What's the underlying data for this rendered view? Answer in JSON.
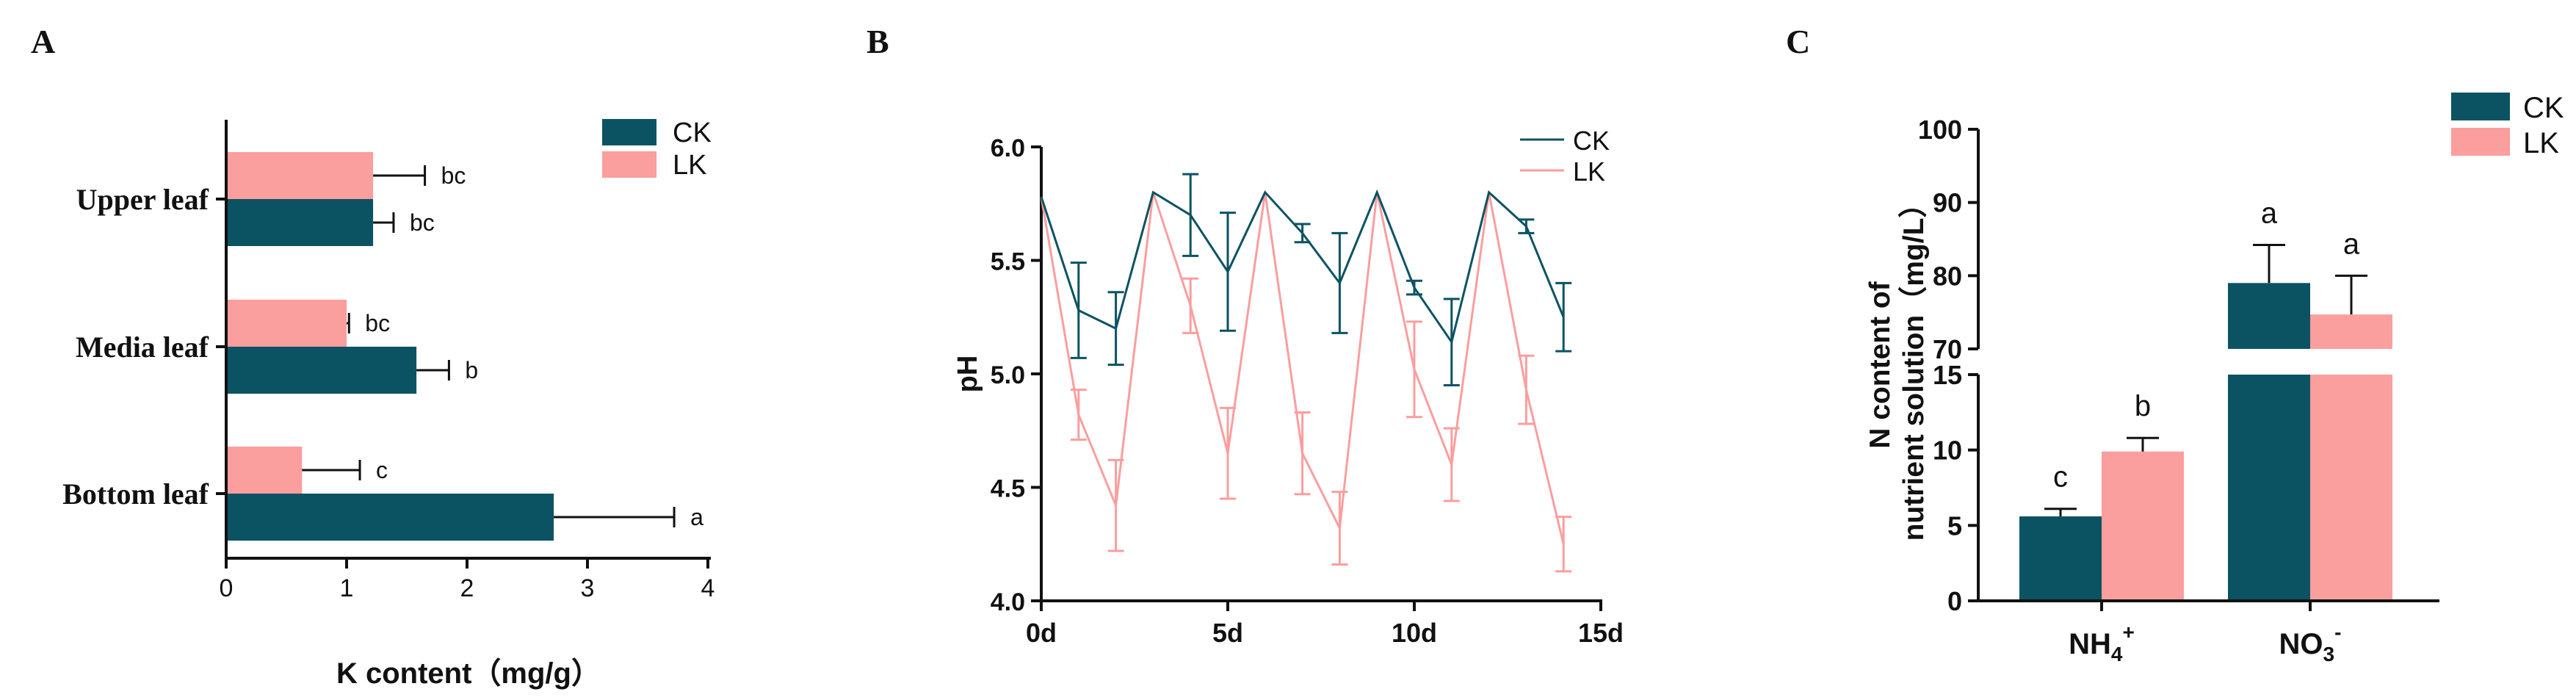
{
  "colors": {
    "CK": "#0b5363",
    "LK": "#fb9e9e"
  },
  "chart_data": [
    {
      "panel": "A",
      "type": "bar",
      "orientation": "horizontal",
      "categories": [
        "Upper leaf",
        "Media leaf",
        "Bottom leaf"
      ],
      "series": [
        {
          "name": "CK",
          "values": [
            1.22,
            1.58,
            2.72
          ],
          "errors": [
            0.17,
            0.27,
            1.0
          ],
          "letters": [
            "bc",
            "b",
            "a"
          ]
        },
        {
          "name": "LK",
          "values": [
            1.22,
            1.0,
            0.63
          ],
          "errors": [
            0.43,
            0.02,
            0.48
          ],
          "letters": [
            "bc",
            "bc",
            "c"
          ]
        }
      ],
      "xlabel": "K content（mg/g）",
      "xlim": [
        0,
        4
      ],
      "xticks": [
        "0",
        "1",
        "2",
        "3",
        "4"
      ],
      "legend": "top-right"
    },
    {
      "panel": "B",
      "type": "line",
      "x": [
        0,
        1,
        2,
        3,
        4,
        5,
        6,
        7,
        8,
        9,
        10,
        11,
        12,
        13,
        14
      ],
      "series": [
        {
          "name": "CK",
          "values": [
            5.78,
            5.28,
            5.2,
            5.8,
            5.7,
            5.45,
            5.8,
            5.62,
            5.4,
            5.8,
            5.38,
            5.14,
            5.8,
            5.65,
            5.25
          ],
          "errors": [
            0,
            0.21,
            0.16,
            0,
            0.18,
            0.26,
            0,
            0.04,
            0.22,
            0,
            0.03,
            0.19,
            0,
            0.03,
            0.15
          ]
        },
        {
          "name": "LK",
          "values": [
            5.78,
            4.82,
            4.42,
            5.8,
            5.3,
            4.65,
            5.8,
            4.65,
            4.32,
            5.8,
            5.02,
            4.6,
            5.8,
            4.93,
            4.25
          ],
          "errors": [
            0,
            0.11,
            0.2,
            0,
            0.12,
            0.2,
            0,
            0.18,
            0.16,
            0,
            0.21,
            0.16,
            0,
            0.15,
            0.12
          ]
        }
      ],
      "ylabel": "pH",
      "ylim": [
        4.0,
        6.0
      ],
      "yticks": [
        "4.0",
        "4.5",
        "5.0",
        "5.5",
        "6.0"
      ],
      "xlim": [
        0,
        15
      ],
      "xticks": [
        "0d",
        "5d",
        "10d",
        "15d"
      ],
      "legend": "top-right"
    },
    {
      "panel": "C",
      "type": "bar",
      "orientation": "vertical",
      "broken_axis": true,
      "categories": [
        "NH4+",
        "NO3-"
      ],
      "series": [
        {
          "name": "CK",
          "values": [
            5.6,
            79.0
          ],
          "errors": [
            0.5,
            5.2
          ],
          "letters": [
            "c",
            "a"
          ]
        },
        {
          "name": "LK",
          "values": [
            9.9,
            74.7
          ],
          "errors": [
            0.9,
            5.3
          ],
          "letters": [
            "b",
            "a"
          ]
        }
      ],
      "ylabel": "N content of nutrient solution（mg/L）",
      "ylim_lower": [
        0,
        15
      ],
      "ylim_upper": [
        70,
        100
      ],
      "yticks_lower": [
        "0",
        "5",
        "10",
        "15"
      ],
      "yticks_upper": [
        "70",
        "80",
        "90",
        "100"
      ],
      "legend": "top-right"
    }
  ],
  "labels": {
    "panelA": "A",
    "panelB": "B",
    "panelC": "C",
    "catC": {
      "nh4_base": "NH",
      "nh4_sub": "4",
      "nh4_sup": "+",
      "no3_base": "NO",
      "no3_sub": "3",
      "no3_sup": "-"
    }
  }
}
